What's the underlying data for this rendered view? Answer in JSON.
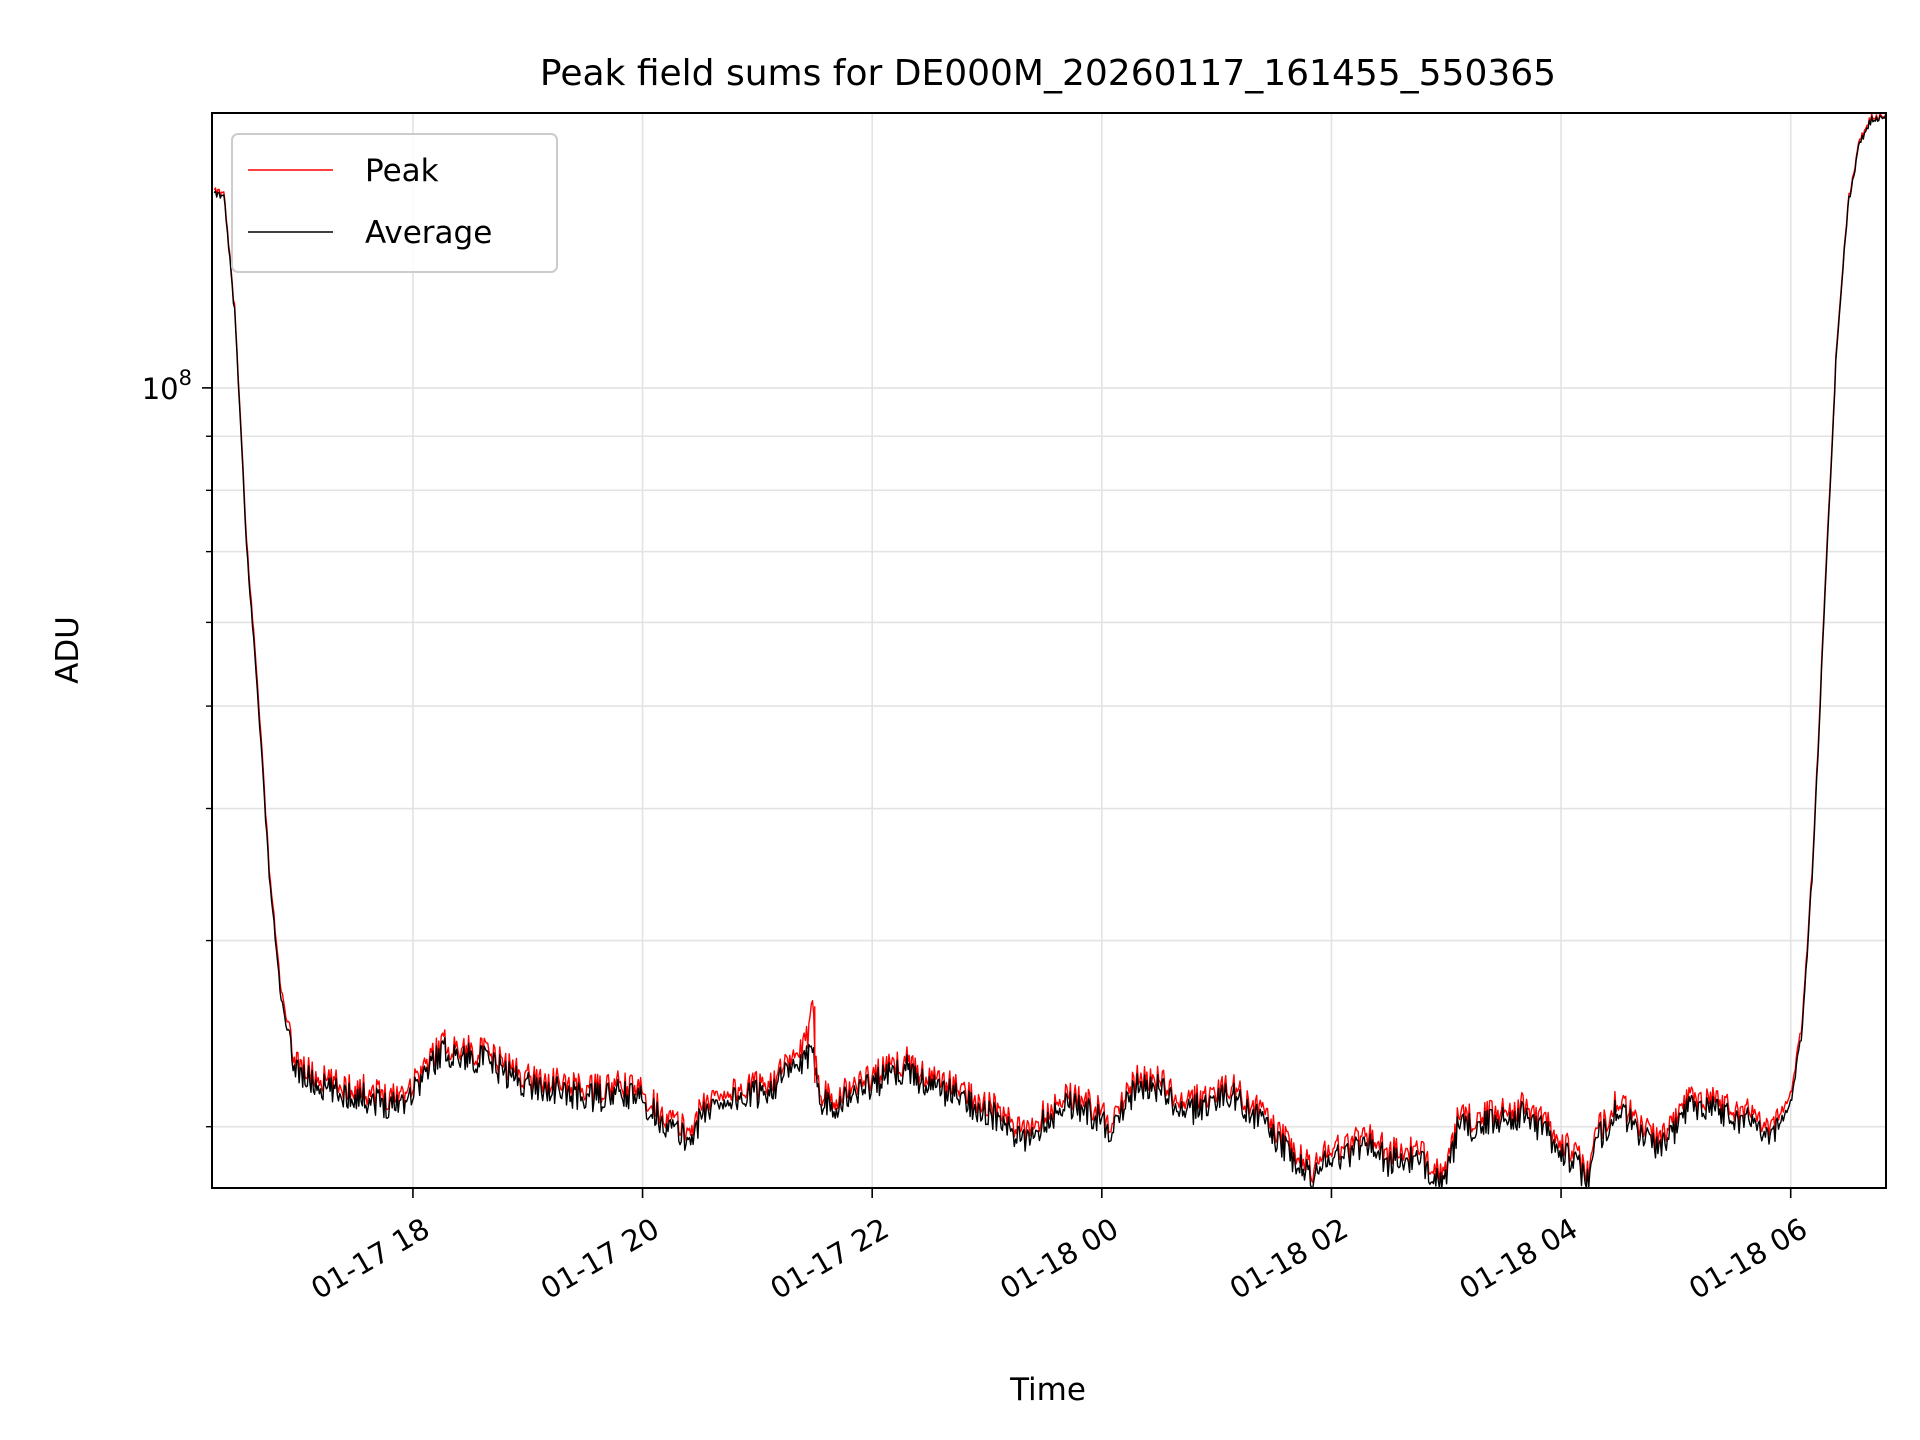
{
  "chart_data": {
    "type": "line",
    "title": "Peak field sums for DE000M_20260117_161455_550365",
    "xlabel": "Time",
    "ylabel": "ADU",
    "yscale": "log",
    "ylim": [
      17500000,
      182000000
    ],
    "y_major_tick": {
      "value": 100000000,
      "label_base": "10",
      "label_exp": "8"
    },
    "y_minor_ticks": [
      20000000,
      30000000,
      40000000,
      50000000,
      60000000,
      70000000,
      80000000,
      90000000
    ],
    "xlim_hours": [
      16.25,
      30.83
    ],
    "x_ticks": [
      {
        "hour": 18,
        "label": "01-17 18"
      },
      {
        "hour": 20,
        "label": "01-17 20"
      },
      {
        "hour": 22,
        "label": "01-17 22"
      },
      {
        "hour": 24,
        "label": "01-18 00"
      },
      {
        "hour": 26,
        "label": "01-18 02"
      },
      {
        "hour": 28,
        "label": "01-18 04"
      },
      {
        "hour": 30,
        "label": "01-18 06"
      }
    ],
    "grid": true,
    "legend_position": "top-left",
    "series": [
      {
        "name": "Peak",
        "color": "#ff0000",
        "time_hours": [
          16.27,
          16.35,
          16.45,
          16.55,
          16.65,
          16.75,
          16.85,
          16.95,
          17.05,
          17.15,
          17.25,
          17.35,
          17.5,
          17.65,
          17.8,
          17.95,
          18.1,
          18.25,
          18.4,
          18.6,
          18.8,
          19.0,
          19.2,
          19.4,
          19.6,
          19.8,
          20.0,
          20.2,
          20.4,
          20.55,
          20.7,
          20.9,
          21.1,
          21.3,
          21.45,
          21.48,
          21.5,
          21.52,
          21.55,
          21.7,
          21.9,
          22.1,
          22.3,
          22.5,
          22.7,
          22.9,
          23.1,
          23.3,
          23.5,
          23.7,
          23.9,
          24.1,
          24.3,
          24.5,
          24.7,
          24.9,
          25.1,
          25.3,
          25.5,
          25.7,
          25.85,
          25.95,
          26.1,
          26.3,
          26.5,
          26.7,
          26.9,
          27.0,
          27.1,
          27.3,
          27.5,
          27.7,
          27.9,
          28.1,
          28.25,
          28.3,
          28.5,
          28.7,
          28.9,
          29.1,
          29.3,
          29.5,
          29.7,
          29.85,
          30.0,
          30.1,
          30.2,
          30.3,
          30.4,
          30.5,
          30.6,
          30.7,
          30.8,
          30.83
        ],
        "values": [
          153000000,
          154000000,
          118000000,
          72000000,
          52000000,
          35000000,
          27000000,
          23500000,
          22700000,
          22300000,
          22100000,
          21900000,
          21800000,
          21600000,
          21400000,
          21700000,
          22800000,
          24000000,
          23700000,
          23600000,
          22900000,
          22300000,
          22100000,
          21800000,
          21700000,
          21900000,
          21600000,
          20500000,
          19800000,
          21100000,
          21600000,
          21700000,
          22100000,
          23000000,
          24300000,
          26000000,
          24000000,
          23000000,
          21600000,
          21400000,
          22100000,
          22600000,
          23100000,
          22200000,
          21900000,
          21300000,
          20700000,
          19700000,
          20600000,
          21500000,
          21000000,
          20200000,
          22200000,
          22200000,
          20900000,
          21400000,
          21900000,
          21100000,
          20000000,
          18800000,
          18200000,
          19200000,
          19100000,
          19800000,
          18900000,
          19000000,
          18500000,
          18000000,
          20300000,
          20400000,
          20800000,
          20900000,
          20000000,
          18900000,
          18100000,
          19700000,
          21200000,
          20000000,
          19500000,
          21300000,
          21400000,
          20800000,
          20600000,
          20000000,
          21500000,
          25000000,
          37000000,
          65000000,
          110000000,
          150000000,
          172000000,
          180000000,
          182000000,
          182000000
        ]
      },
      {
        "name": "Average",
        "color": "#000000",
        "time_hours": [
          16.27,
          16.35,
          16.45,
          16.55,
          16.65,
          16.75,
          16.85,
          16.95,
          17.05,
          17.15,
          17.25,
          17.35,
          17.5,
          17.65,
          17.8,
          17.95,
          18.1,
          18.25,
          18.4,
          18.6,
          18.8,
          19.0,
          19.2,
          19.4,
          19.6,
          19.8,
          20.0,
          20.2,
          20.4,
          20.55,
          20.7,
          20.9,
          21.1,
          21.3,
          21.45,
          21.48,
          21.5,
          21.52,
          21.55,
          21.7,
          21.9,
          22.1,
          22.3,
          22.5,
          22.7,
          22.9,
          23.1,
          23.3,
          23.5,
          23.7,
          23.9,
          24.1,
          24.3,
          24.5,
          24.7,
          24.9,
          25.1,
          25.3,
          25.5,
          25.7,
          25.85,
          25.95,
          26.1,
          26.3,
          26.5,
          26.7,
          26.9,
          27.0,
          27.1,
          27.3,
          27.5,
          27.7,
          27.9,
          28.1,
          28.25,
          28.3,
          28.5,
          28.7,
          28.9,
          29.1,
          29.3,
          29.5,
          29.7,
          29.85,
          30.0,
          30.1,
          30.2,
          30.3,
          30.4,
          30.5,
          30.6,
          30.7,
          30.8,
          30.83
        ],
        "values": [
          152000000,
          153000000,
          117000000,
          71000000,
          51000000,
          34500000,
          26500000,
          23100000,
          22300000,
          21900000,
          21700000,
          21500000,
          21400000,
          21200000,
          21000000,
          21300000,
          22400000,
          23600000,
          23300000,
          23200000,
          22500000,
          21900000,
          21700000,
          21400000,
          21300000,
          21500000,
          21200000,
          20100000,
          19400000,
          20700000,
          21200000,
          21300000,
          21700000,
          22600000,
          23200000,
          23200000,
          23100000,
          22600000,
          21200000,
          21000000,
          21700000,
          22200000,
          22700000,
          21800000,
          21500000,
          20900000,
          20300000,
          19300000,
          20200000,
          21100000,
          20600000,
          19800000,
          21800000,
          21800000,
          20500000,
          21000000,
          21500000,
          20700000,
          19600000,
          18400000,
          17800000,
          18800000,
          18700000,
          19400000,
          18500000,
          18600000,
          18100000,
          17700000,
          19900000,
          20000000,
          20400000,
          20500000,
          19600000,
          18500000,
          17800000,
          19300000,
          20800000,
          19600000,
          19100000,
          20900000,
          21000000,
          20400000,
          20200000,
          19600000,
          21100000,
          24600000,
          36500000,
          64000000,
          109000000,
          149000000,
          171000000,
          179000000,
          181500000,
          181800000
        ]
      }
    ]
  },
  "legend": {
    "items": [
      {
        "label": "Peak",
        "color": "#ff0000"
      },
      {
        "label": "Average",
        "color": "#000000"
      }
    ]
  }
}
